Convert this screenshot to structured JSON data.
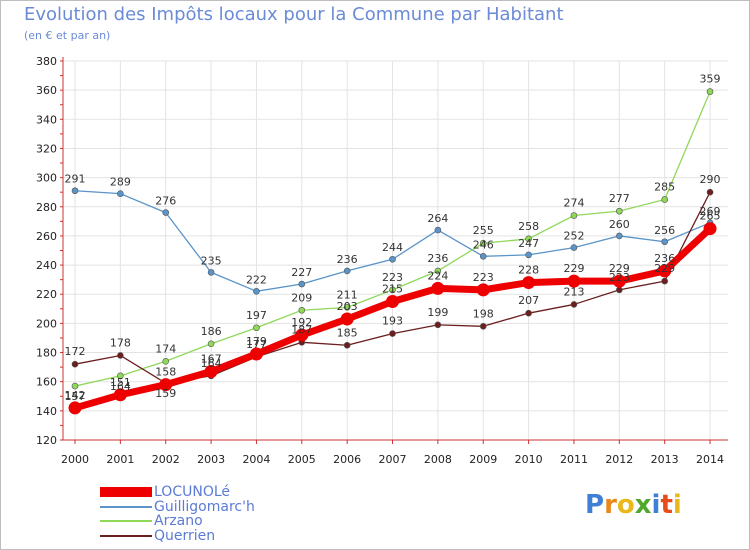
{
  "title": "Evolution des Impôts locaux pour la Commune par Habitant",
  "subtitle": "(en € et par an)",
  "brand": "Proxiti",
  "chart_data": {
    "type": "line",
    "categories": [
      "2000",
      "2001",
      "2002",
      "2003",
      "2004",
      "2005",
      "2006",
      "2007",
      "2008",
      "2009",
      "2010",
      "2011",
      "2012",
      "2013",
      "2014"
    ],
    "ylim": [
      120,
      380
    ],
    "yticks": [
      "120",
      "140",
      "160",
      "180",
      "200",
      "220",
      "240",
      "260",
      "280",
      "300",
      "320",
      "340",
      "360",
      "380"
    ],
    "grid": true,
    "series": [
      {
        "name": "Guilligomarc'h",
        "color": "#5a94c8",
        "values": [
          291,
          289,
          276,
          235,
          222,
          227,
          236,
          244,
          264,
          246,
          247,
          252,
          260,
          256,
          269
        ]
      },
      {
        "name": "Arzano",
        "color": "#8fd85a",
        "values": [
          157,
          164,
          174,
          186,
          197,
          209,
          211,
          223,
          236,
          255,
          258,
          274,
          277,
          285,
          359
        ]
      },
      {
        "name": "Querrien",
        "color": "#6b1f1f",
        "values": [
          172,
          178,
          159,
          164,
          177,
          187,
          185,
          193,
          199,
          198,
          207,
          213,
          223,
          229,
          290
        ]
      },
      {
        "name": "LOCUNOLé",
        "color": "#ee0000",
        "values": [
          142,
          151,
          158,
          167,
          179,
          192,
          203,
          215,
          224,
          223,
          228,
          229,
          229,
          236,
          265
        ]
      }
    ]
  },
  "legend": [
    {
      "label": "LOCUNOLé",
      "color": "#ee0000"
    },
    {
      "label": "Guilligomarc'h",
      "color": "#5a94c8"
    },
    {
      "label": "Arzano",
      "color": "#8fd85a"
    },
    {
      "label": "Querrien",
      "color": "#6b1f1f"
    }
  ]
}
